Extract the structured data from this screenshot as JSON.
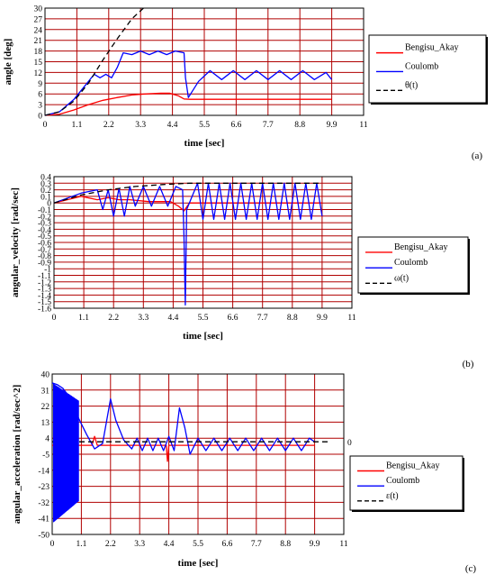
{
  "chart_data": [
    {
      "type": "line",
      "panel_label": "(a)",
      "xlabel": "time [sec]",
      "ylabel": "angle [deg]",
      "xlim": [
        0,
        11
      ],
      "ylim": [
        0,
        30
      ],
      "xticks": [
        "0",
        "1.1",
        "2.2",
        "3.3",
        "4.4",
        "5.5",
        "6.6",
        "7.7",
        "8.8",
        "9.9",
        "11"
      ],
      "yticks": [
        "0",
        "3",
        "6",
        "9",
        "12",
        "15",
        "18",
        "21",
        "24",
        "27",
        "30"
      ],
      "grid": true,
      "legend_position": "right",
      "series": [
        {
          "name": "Bengisu_Akay",
          "color": "#ff0000",
          "style": "solid",
          "x": [
            0,
            0.5,
            1.0,
            1.5,
            2.0,
            2.5,
            3.0,
            3.5,
            4.0,
            4.3,
            4.6,
            4.8,
            5.0,
            6.0,
            7.0,
            8.0,
            9.0,
            9.9
          ],
          "y": [
            0,
            0.3,
            1.5,
            3.0,
            4.2,
            5.0,
            5.7,
            6.0,
            6.2,
            6.2,
            5.5,
            4.6,
            4.5,
            4.5,
            4.5,
            4.5,
            4.5,
            4.5
          ]
        },
        {
          "name": "Coulomb",
          "color": "#0000ff",
          "style": "solid",
          "x": [
            0,
            0.5,
            1.0,
            1.4,
            1.7,
            1.9,
            2.1,
            2.3,
            2.5,
            2.7,
            3.0,
            3.3,
            3.6,
            3.9,
            4.2,
            4.5,
            4.8,
            4.85,
            4.95,
            5.3,
            5.7,
            6.1,
            6.5,
            6.9,
            7.3,
            7.7,
            8.1,
            8.5,
            8.9,
            9.3,
            9.7,
            9.9
          ],
          "y": [
            0,
            1.0,
            4.5,
            8.5,
            11.5,
            10.5,
            11.5,
            10.5,
            13.5,
            17.5,
            17.0,
            18.0,
            17.0,
            18.0,
            17.0,
            18.0,
            17.5,
            10.5,
            5.0,
            9.5,
            12.5,
            10.0,
            12.5,
            10.0,
            12.5,
            10.0,
            12.5,
            10.0,
            12.5,
            10.0,
            12.0,
            10.0
          ]
        },
        {
          "name": "θ(t)",
          "color": "#000000",
          "style": "dashed",
          "x": [
            0,
            0.5,
            1.0,
            1.5,
            2.0,
            2.5,
            3.0,
            3.4
          ],
          "y": [
            0,
            1.0,
            4.0,
            9.0,
            15.5,
            21.5,
            27.0,
            30.0
          ]
        }
      ]
    },
    {
      "type": "line",
      "panel_label": "(b)",
      "xlabel": "time [sec]",
      "ylabel": "angular_velocity [rad/sec]",
      "xlim": [
        0,
        11
      ],
      "ylim": [
        -1.6,
        0.4
      ],
      "xticks": [
        "0",
        "1.1",
        "2.2",
        "3.3",
        "4.4",
        "5.5",
        "6.6",
        "7.7",
        "8.8",
        "9.9",
        "11"
      ],
      "yticks": [
        "0.4",
        "0.3",
        "0.2",
        "0.1",
        "0",
        "-0.1",
        "-0.2",
        "-0.3",
        "-0.4",
        "-0.5",
        "-0.6",
        "-0.7",
        "-0.8",
        "-0.9",
        "-1",
        "-1.1",
        "-1.2",
        "-1.3",
        "-1.4",
        "-1.5",
        "-1.6"
      ],
      "grid": true,
      "legend_position": "right",
      "series": [
        {
          "name": "Bengisu_Akay",
          "color": "#ff0000",
          "style": "solid",
          "x": [
            0,
            1.0,
            1.6,
            2.0,
            2.4,
            2.8,
            3.5,
            4.3,
            4.6,
            4.8,
            5.0,
            9.9
          ],
          "y": [
            0,
            0.1,
            0.05,
            0.08,
            0.05,
            0.05,
            0.02,
            0.02,
            -0.05,
            -0.12,
            0,
            0
          ]
        },
        {
          "name": "Coulomb",
          "color": "#0000ff",
          "style": "solid",
          "x": [
            0,
            1.0,
            1.6,
            1.8,
            2.0,
            2.2,
            2.4,
            2.6,
            2.8,
            3.0,
            3.3,
            3.6,
            3.9,
            4.2,
            4.5,
            4.75,
            4.8,
            4.85,
            4.9,
            5.3,
            5.5,
            5.7,
            5.9,
            6.1,
            6.3,
            6.5,
            6.7,
            6.9,
            7.1,
            7.3,
            7.5,
            7.7,
            7.9,
            8.1,
            8.3,
            8.5,
            8.7,
            8.9,
            9.1,
            9.3,
            9.5,
            9.7,
            9.9
          ],
          "y": [
            0,
            0.15,
            0.2,
            -0.1,
            0.2,
            -0.2,
            0.22,
            -0.2,
            0.25,
            -0.05,
            0.25,
            -0.05,
            0.25,
            -0.05,
            0.25,
            0.2,
            -0.5,
            -1.55,
            -0.1,
            0.3,
            -0.25,
            0.3,
            -0.25,
            0.3,
            -0.25,
            0.3,
            -0.25,
            0.3,
            -0.25,
            0.3,
            -0.25,
            0.3,
            -0.25,
            0.3,
            -0.25,
            0.3,
            -0.25,
            0.3,
            -0.25,
            0.3,
            -0.25,
            0.3,
            -0.2
          ]
        },
        {
          "name": "ω(t)",
          "color": "#000000",
          "style": "dashed",
          "x": [
            0,
            1.0,
            2.0,
            3.0,
            4.0,
            5.0,
            6.0,
            7.0,
            8.0,
            9.9
          ],
          "y": [
            0,
            0.12,
            0.2,
            0.25,
            0.28,
            0.3,
            0.3,
            0.3,
            0.3,
            0.3
          ]
        }
      ]
    },
    {
      "type": "line",
      "panel_label": "(c)",
      "xlabel": "time [sec]",
      "ylabel": "angular_acceleration [rad/sec^2]",
      "xlim": [
        0,
        11
      ],
      "ylim": [
        -50,
        40
      ],
      "xticks": [
        "0",
        "1.1",
        "2.2",
        "3.3",
        "4.4",
        "5.5",
        "6.6",
        "7.7",
        "8.8",
        "9.9",
        "11"
      ],
      "yticks": [
        "40",
        "31",
        "22",
        "13",
        "4",
        "-5",
        "-14",
        "-23",
        "-32",
        "-41",
        "-50"
      ],
      "grid": true,
      "legend_position": "right",
      "series": [
        {
          "name": "Bengisu_Akay",
          "color": "#ff0000",
          "style": "solid",
          "x": [
            0,
            1.5,
            1.6,
            1.7,
            3.0,
            4.3,
            4.35,
            4.4,
            5.0,
            9.9
          ],
          "y": [
            0,
            0,
            5,
            0,
            0,
            0,
            -9,
            0,
            0,
            0
          ]
        },
        {
          "name": "Coulomb",
          "color": "#0000ff",
          "style": "solid",
          "x": [
            0,
            0.2,
            0.4,
            0.6,
            0.8,
            1.0,
            1.3,
            1.6,
            1.9,
            2.2,
            2.4,
            2.7,
            3.0,
            3.2,
            3.4,
            3.6,
            3.8,
            4.0,
            4.2,
            4.4,
            4.6,
            4.8,
            5.0,
            5.2,
            5.5,
            5.8,
            6.1,
            6.4,
            6.7,
            7.0,
            7.3,
            7.6,
            7.9,
            8.2,
            8.5,
            8.8,
            9.1,
            9.4,
            9.7,
            9.9
          ],
          "y": [
            35,
            34,
            32,
            28,
            22,
            15,
            6,
            -2,
            1,
            26,
            14,
            3,
            -2,
            4,
            -3,
            4,
            -3,
            4,
            -3,
            5,
            -3,
            21,
            10,
            -5,
            4,
            -3,
            4,
            -3,
            4,
            -3,
            4,
            -3,
            4,
            -3,
            4,
            -3,
            4,
            -3,
            4,
            2
          ]
        },
        {
          "name": "ε(t)",
          "color": "#000000",
          "style": "dashed",
          "x": [
            0,
            2.0,
            4.0,
            6.0,
            8.0,
            10.5
          ],
          "y": [
            2,
            2,
            2,
            2,
            2,
            2
          ]
        }
      ],
      "right_annotation": "0"
    }
  ]
}
